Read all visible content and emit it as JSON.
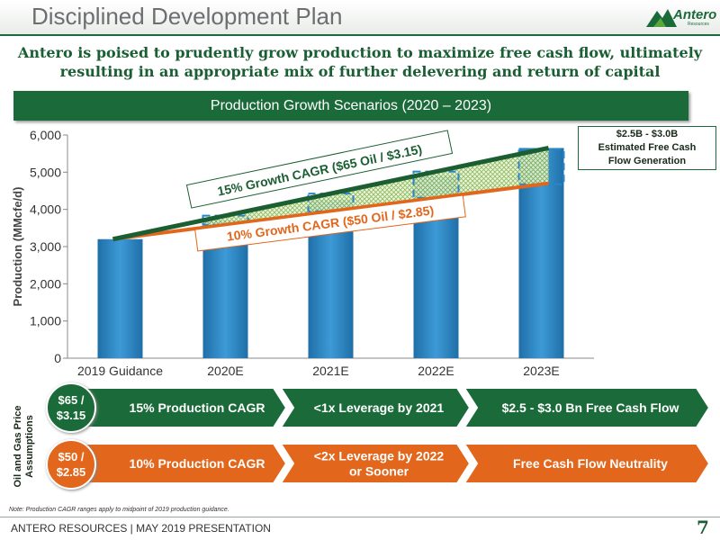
{
  "header": {
    "title": "Disciplined Development Plan",
    "logo_text": "Antero",
    "logo_sub": "Resources"
  },
  "subtitle_lines": [
    "Antero is poised to prudently grow production to maximize free cash flow, ultimately",
    "resulting in an appropriate mix of further delevering and return of capital"
  ],
  "banner": "Production Growth Scenarios (2020 – 2023)",
  "fcf_callout": [
    "$2.5B - $3.0B",
    "Estimated Free Cash",
    "Flow Generation"
  ],
  "chart_data": {
    "type": "bar",
    "categories": [
      "2019 Guidance",
      "2020E",
      "2021E",
      "2022E",
      "2023E"
    ],
    "values": [
      3200,
      3700,
      4250,
      4900,
      5650
    ],
    "ylabel": "Production (MMcfe/d)",
    "ylim": [
      0,
      6000
    ],
    "yticks": [
      "0",
      "1,000",
      "2,000",
      "3,000",
      "4,000",
      "5,000",
      "6,000"
    ],
    "ytick_values": [
      0,
      1000,
      2000,
      3000,
      4000,
      5000,
      6000
    ],
    "lines": [
      {
        "name": "15% Growth CAGR ($65 Oil / $3.15)",
        "start": 3200,
        "end": 5650,
        "color": "#1b5e32"
      },
      {
        "name": "10% Growth CAGR ($50 Oil / $2.85)",
        "start": 3200,
        "end": 4700,
        "color": "#e2661b"
      }
    ],
    "grid": false
  },
  "assumptions_label": [
    "Oil and Gas Price",
    "Assumptions"
  ],
  "scenarios": [
    {
      "price": [
        "$65 /",
        "$3.15"
      ],
      "color": "#1b6b3a",
      "steps": [
        "15% Production CAGR",
        "<1x Leverage by 2021",
        "$2.5 - $3.0 Bn Free Cash Flow"
      ]
    },
    {
      "price": [
        "$50 /",
        "$2.85"
      ],
      "color": "#e2661b",
      "steps": [
        "10% Production CAGR",
        "<2x Leverage by 2022 or Sooner",
        "Free Cash Flow Neutrality"
      ]
    }
  ],
  "note": "Note: Production CAGR ranges apply to midpoint of 2019 production guidance.",
  "footer": "ANTERO RESOURCES | MAY 2019 PRESENTATION",
  "page_number": "7"
}
